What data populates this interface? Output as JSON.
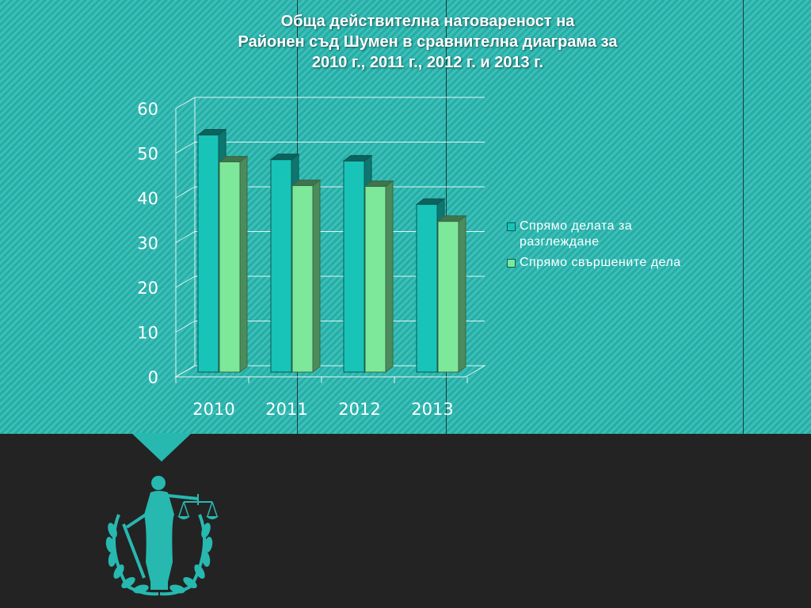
{
  "title": {
    "line1": "Обща действителна натовареност на",
    "line2": "Районен съд Шумен в сравнителна диаграма за",
    "line3": "2010 г., 2011 г., 2012 г. и 2013 г."
  },
  "chart_data": {
    "type": "bar",
    "categories": [
      "2010",
      "2011",
      "2012",
      "2013"
    ],
    "series": [
      {
        "name": "Спрямо делата за разглеждане",
        "values": [
          53,
          47.5,
          47.2,
          37.5
        ],
        "color": "#18c4b8"
      },
      {
        "name": "Спрямо свършените дела",
        "values": [
          47,
          41.7,
          41.5,
          33.7
        ],
        "color": "#7ee89a"
      }
    ],
    "yticks": [
      "0",
      "10",
      "20",
      "30",
      "40",
      "50",
      "60"
    ],
    "ylim": [
      0,
      60
    ],
    "grid": true,
    "legend": "right"
  },
  "emblem": {
    "icon": "lady-justice-icon"
  }
}
